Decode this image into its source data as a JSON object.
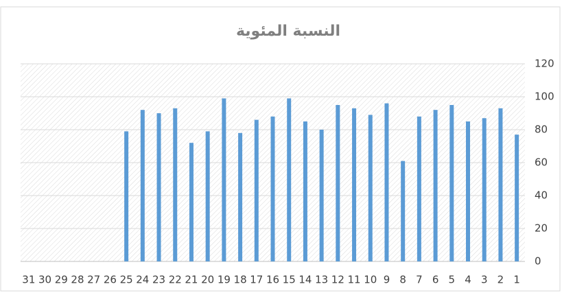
{
  "chart_data": {
    "type": "bar",
    "title": "النسبة المئوية",
    "categories": [
      "1",
      "2",
      "3",
      "4",
      "5",
      "6",
      "7",
      "8",
      "9",
      "10",
      "11",
      "12",
      "13",
      "14",
      "15",
      "16",
      "17",
      "18",
      "19",
      "20",
      "21",
      "22",
      "23",
      "24",
      "25",
      "26",
      "27",
      "28",
      "29",
      "30",
      "31"
    ],
    "values": [
      77,
      93,
      87,
      85,
      95,
      92,
      88,
      61,
      96,
      89,
      93,
      95,
      80,
      85,
      99,
      88,
      86,
      78,
      99,
      79,
      72,
      93,
      90,
      92,
      79,
      null,
      null,
      null,
      null,
      null,
      null
    ],
    "color": "#5b9bd5",
    "ylim": [
      0,
      120
    ],
    "yticks": [
      0,
      20,
      40,
      60,
      80,
      100,
      120
    ],
    "grid": true,
    "x_reversed": true,
    "y_axis_side": "right"
  }
}
